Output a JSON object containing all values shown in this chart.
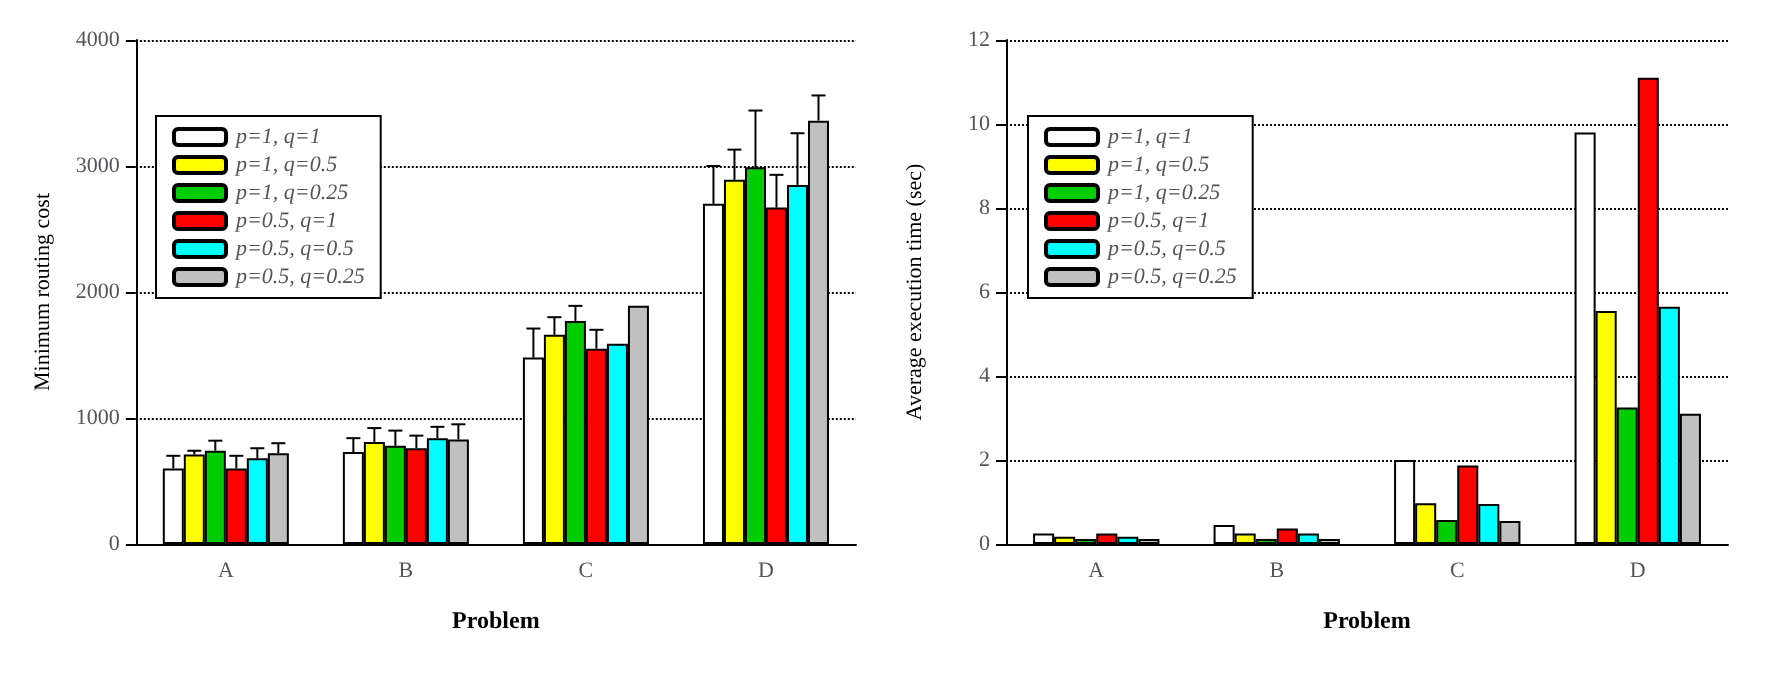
{
  "chart_data": [
    {
      "type": "bar",
      "xlabel": "Problem",
      "ylabel": "Minimum routing cost",
      "categories": [
        "A",
        "B",
        "C",
        "D"
      ],
      "ylim": [
        0,
        4000
      ],
      "yticks": [
        0,
        1000,
        2000,
        3000,
        4000
      ],
      "grid": "y",
      "legend": "top left",
      "series": [
        {
          "name": "p=1, q=1",
          "color": "#ffffff",
          "values": [
            600,
            730,
            1480,
            2700
          ],
          "errors": [
            [
              600,
              700
            ],
            [
              730,
              840
            ],
            [
              1480,
              1710
            ],
            [
              2700,
              3000
            ]
          ]
        },
        {
          "name": "p=1, q=0.5",
          "color": "#ffff00",
          "values": [
            710,
            810,
            1660,
            2890
          ],
          "errors": [
            [
              710,
              740
            ],
            [
              810,
              920
            ],
            [
              1660,
              1800
            ],
            [
              2890,
              3130
            ]
          ]
        },
        {
          "name": "p=1, q=0.25",
          "color": "#00cc00",
          "values": [
            740,
            780,
            1770,
            2990
          ],
          "errors": [
            [
              740,
              820
            ],
            [
              780,
              900
            ],
            [
              1770,
              1890
            ],
            [
              2990,
              3440
            ]
          ]
        },
        {
          "name": "p=0.5, q=1",
          "color": "#ff0000",
          "values": [
            600,
            760,
            1550,
            2670
          ],
          "errors": [
            [
              600,
              700
            ],
            [
              760,
              860
            ],
            [
              1550,
              1700
            ],
            [
              2670,
              2930
            ]
          ]
        },
        {
          "name": "p=0.5, q=0.5",
          "color": "#00ffff",
          "values": [
            680,
            840,
            1590,
            2850
          ],
          "errors": [
            [
              680,
              760
            ],
            [
              840,
              930
            ],
            null,
            [
              2850,
              3260
            ]
          ]
        },
        {
          "name": "p=0.5, q=0.25",
          "color": "#c0c0c0",
          "values": [
            720,
            830,
            1890,
            3360
          ],
          "errors": [
            [
              720,
              800
            ],
            [
              830,
              950
            ],
            null,
            [
              3360,
              3560
            ]
          ]
        }
      ]
    },
    {
      "type": "bar",
      "xlabel": "Problem",
      "ylabel": "Average execution time (sec)",
      "categories": [
        "A",
        "B",
        "C",
        "D"
      ],
      "ylim": [
        0,
        12
      ],
      "yticks": [
        0,
        2,
        4,
        6,
        8,
        10,
        12
      ],
      "grid": "y",
      "legend": "top left",
      "series": [
        {
          "name": "p=1, q=1",
          "color": "#ffffff",
          "values": [
            0.25,
            0.45,
            2.0,
            9.8
          ]
        },
        {
          "name": "p=1, q=0.5",
          "color": "#ffff00",
          "values": [
            0.17,
            0.25,
            0.97,
            5.55
          ]
        },
        {
          "name": "p=1, q=0.25",
          "color": "#00cc00",
          "values": [
            0.12,
            0.12,
            0.57,
            3.25
          ]
        },
        {
          "name": "p=0.5, q=1",
          "color": "#ff0000",
          "values": [
            0.25,
            0.37,
            1.87,
            11.1
          ]
        },
        {
          "name": "p=0.5, q=0.5",
          "color": "#00ffff",
          "values": [
            0.17,
            0.25,
            0.95,
            5.65
          ]
        },
        {
          "name": "p=0.5, q=0.25",
          "color": "#c0c0c0",
          "values": [
            0.12,
            0.12,
            0.55,
            3.1
          ]
        }
      ]
    }
  ]
}
